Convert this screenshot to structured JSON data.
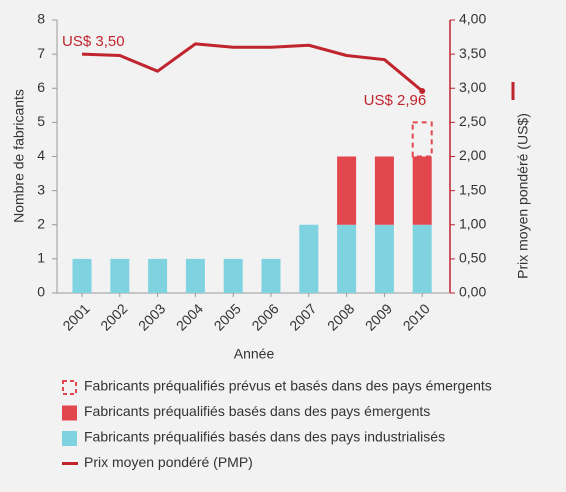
{
  "chart_data": {
    "type": "bar",
    "x_label": "Année",
    "y_label": "Nombre de fabricants",
    "y2_label": "Prix moyen pondéré (US$)",
    "categories": [
      "2001",
      "2002",
      "2003",
      "2004",
      "2005",
      "2006",
      "2007",
      "2008",
      "2009",
      "2010"
    ],
    "series": [
      {
        "name": "Fabricants préqualifiés basés dans des pays industrialisés",
        "color": "#7fd3e0",
        "values": [
          1,
          1,
          1,
          1,
          1,
          1,
          2,
          2,
          2,
          2
        ]
      },
      {
        "name": "Fabricants préqualifiés basés dans des pays émergents",
        "color": "#e2474e",
        "values": [
          0,
          0,
          0,
          0,
          0,
          0,
          0,
          2,
          2,
          2
        ]
      },
      {
        "name": "Fabricants préqualifiés prévus et basés dans des pays émergents",
        "color": "#e2474e",
        "style": "dashed",
        "values": [
          0,
          0,
          0,
          0,
          0,
          0,
          0,
          0,
          0,
          1
        ]
      },
      {
        "name": "Prix moyen pondéré (PMP)",
        "color": "#c0252e",
        "type": "line",
        "axis": "y2",
        "values": [
          3.5,
          3.48,
          3.25,
          3.65,
          3.6,
          3.6,
          3.63,
          3.48,
          3.42,
          2.96
        ],
        "value_labels": [
          "US$ 3,50",
          null,
          null,
          null,
          null,
          null,
          null,
          null,
          null,
          "US$ 2,96"
        ]
      }
    ],
    "ylim": [
      0,
      8
    ],
    "yticks": [
      0,
      1,
      2,
      3,
      4,
      5,
      6,
      7,
      8
    ],
    "y2lim": [
      0,
      4
    ],
    "y2ticks": [
      {
        "value": 0,
        "label": "0,00"
      },
      {
        "value": 0.5,
        "label": "0,50"
      },
      {
        "value": 1,
        "label": "1,00"
      },
      {
        "value": 1.5,
        "label": "1,50"
      },
      {
        "value": 2,
        "label": "2,00"
      },
      {
        "value": 2.5,
        "label": "2,50"
      },
      {
        "value": 3,
        "label": "3,00"
      },
      {
        "value": 3.5,
        "label": "3,50"
      },
      {
        "value": 4,
        "label": "4,00"
      }
    ]
  }
}
